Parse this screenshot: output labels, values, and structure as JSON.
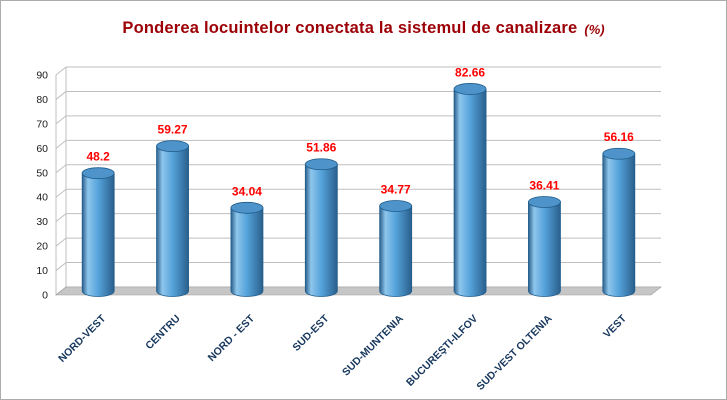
{
  "title": {
    "main": "Ponderea locuintelor conectata la sistemul de canalizare",
    "suffix": "(%)"
  },
  "chart_data": {
    "type": "bar",
    "subtype": "3d-cylinder",
    "title": "Ponderea locuintelor conectata la sistemul de canalizare (%)",
    "categories": [
      "NORD-VEST",
      "CENTRU",
      "NORD - EST",
      "SUD-EST",
      "SUD-MUNTENIA",
      "BUCUREŞTI-ILFOV",
      "SUD-VEST OLTENIA",
      "VEST"
    ],
    "values": [
      48.2,
      59.27,
      34.04,
      51.86,
      34.77,
      82.66,
      36.41,
      56.16
    ],
    "value_labels": [
      "48.2",
      "59.27",
      "34.04",
      "51.86",
      "34.77",
      "82.66",
      "36.41",
      "56.16"
    ],
    "xlabel": "",
    "ylabel": "",
    "ylim": [
      0,
      90
    ],
    "ytick_step": 10,
    "yticks": [
      0,
      10,
      20,
      30,
      40,
      50,
      60,
      70,
      80,
      90
    ],
    "grid": true,
    "legend": false,
    "colors": {
      "title": "#9c0006",
      "value_label": "#ff0000",
      "category_label": "#17375d",
      "axis_label": "#1a1a1a",
      "grid": "#bfbfbf",
      "floor": "#c6c6c6",
      "floor_edge": "#9c9c9c",
      "bar_edge_dark": "#2a5f8c",
      "bar_mid": "#55a3db",
      "bar_highlight": "#8ec6ec",
      "bar_top": "#4e93c9",
      "bar_outline": "#1f5c8b",
      "wall": "#ffffff"
    }
  }
}
